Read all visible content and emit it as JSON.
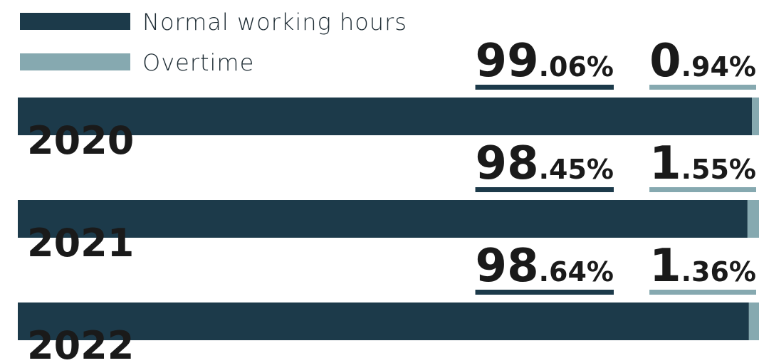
{
  "chart_data": {
    "type": "stacked-bar-horizontal",
    "categories": [
      "2020",
      "2021",
      "2022"
    ],
    "xlim": [
      0,
      100
    ],
    "series": [
      {
        "name": "Normal working hours",
        "color": "#1c3a4a",
        "values": [
          99.06,
          98.45,
          98.64
        ],
        "value_labels": [
          "99.06%",
          "98.45%",
          "98.64%"
        ]
      },
      {
        "name": "Overtime",
        "color": "#86a9b0",
        "values": [
          0.94,
          1.55,
          1.36
        ],
        "value_labels": [
          "0.94%",
          "1.55%",
          "1.36%"
        ]
      }
    ]
  }
}
